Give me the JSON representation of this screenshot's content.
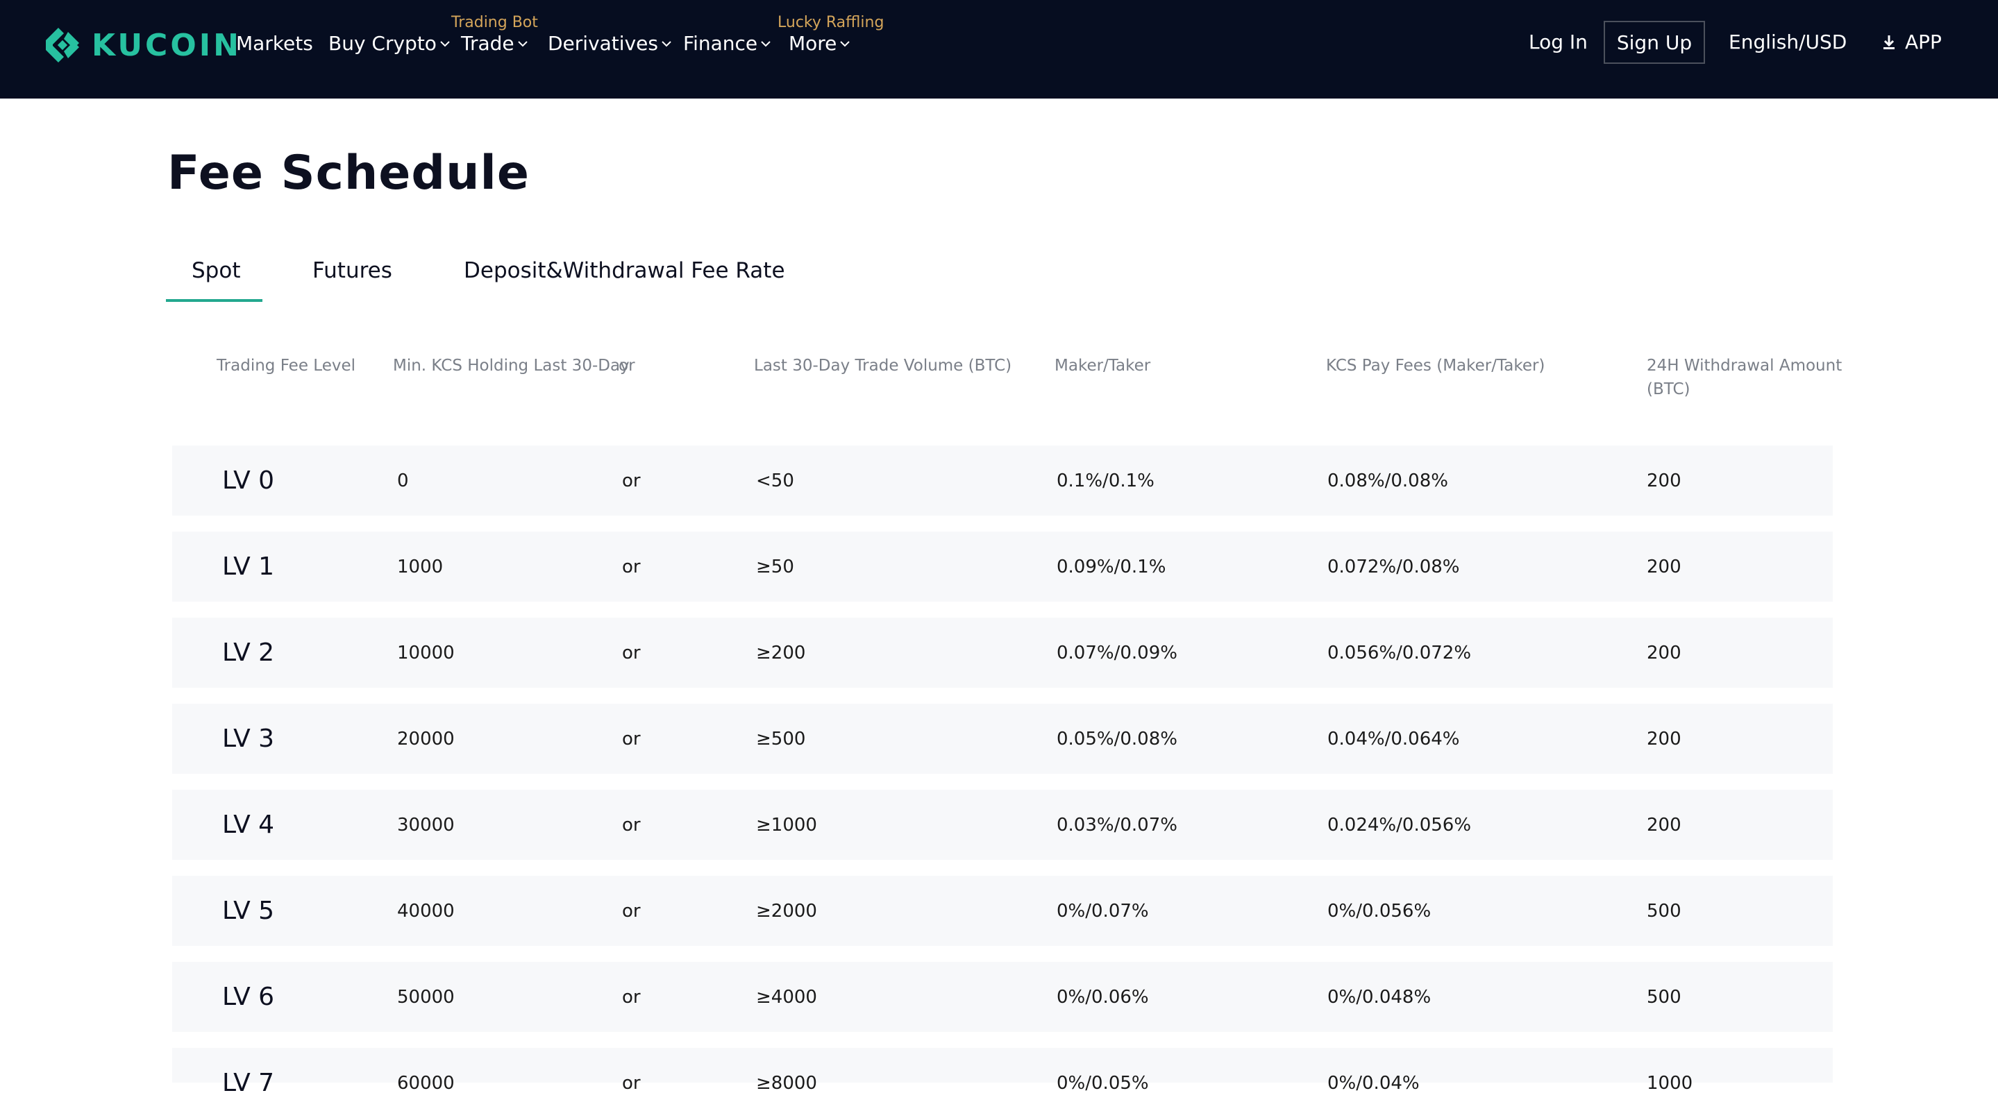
{
  "brand": {
    "name": "KUCOIN",
    "color": "#27c1a0"
  },
  "nav": {
    "items": [
      {
        "label": "Markets",
        "dropdown": false,
        "tag": ""
      },
      {
        "label": "Buy Crypto",
        "dropdown": true,
        "tag": ""
      },
      {
        "label": "Trade",
        "dropdown": true,
        "tag": "Trading Bot"
      },
      {
        "label": "Derivatives",
        "dropdown": true,
        "tag": ""
      },
      {
        "label": "Finance",
        "dropdown": true,
        "tag": ""
      },
      {
        "label": "More",
        "dropdown": true,
        "tag": "Lucky Raffling"
      }
    ],
    "login": "Log In",
    "signup": "Sign Up",
    "language": "English/USD",
    "app": "APP"
  },
  "page": {
    "title": "Fee Schedule",
    "tabs": [
      {
        "label": "Spot",
        "active": true
      },
      {
        "label": "Futures",
        "active": false
      },
      {
        "label": "Deposit&Withdrawal Fee Rate",
        "active": false
      }
    ]
  },
  "table": {
    "headers": {
      "level": "Trading Fee Level",
      "kcs": "Min. KCS Holding Last 30-Day",
      "or": "or",
      "volume": "Last 30-Day Trade Volume (BTC)",
      "maker_taker": "Maker/Taker",
      "kcs_pay": "KCS Pay Fees (Maker/Taker)",
      "withdrawal_line1": "24H Withdrawal Amount",
      "withdrawal_line2": "(BTC)"
    },
    "rows": [
      {
        "level": "LV 0",
        "kcs": "0",
        "or": "or",
        "volume": "<50",
        "maker_taker": "0.1%/0.1%",
        "kcs_pay": "0.08%/0.08%",
        "withdrawal": "200"
      },
      {
        "level": "LV 1",
        "kcs": "1000",
        "or": "or",
        "volume": "≥50",
        "maker_taker": "0.09%/0.1%",
        "kcs_pay": "0.072%/0.08%",
        "withdrawal": "200"
      },
      {
        "level": "LV 2",
        "kcs": "10000",
        "or": "or",
        "volume": "≥200",
        "maker_taker": "0.07%/0.09%",
        "kcs_pay": "0.056%/0.072%",
        "withdrawal": "200"
      },
      {
        "level": "LV 3",
        "kcs": "20000",
        "or": "or",
        "volume": "≥500",
        "maker_taker": "0.05%/0.08%",
        "kcs_pay": "0.04%/0.064%",
        "withdrawal": "200"
      },
      {
        "level": "LV 4",
        "kcs": "30000",
        "or": "or",
        "volume": "≥1000",
        "maker_taker": "0.03%/0.07%",
        "kcs_pay": "0.024%/0.056%",
        "withdrawal": "200"
      },
      {
        "level": "LV 5",
        "kcs": "40000",
        "or": "or",
        "volume": "≥2000",
        "maker_taker": "0%/0.07%",
        "kcs_pay": "0%/0.056%",
        "withdrawal": "500"
      },
      {
        "level": "LV 6",
        "kcs": "50000",
        "or": "or",
        "volume": "≥4000",
        "maker_taker": "0%/0.06%",
        "kcs_pay": "0%/0.048%",
        "withdrawal": "500"
      },
      {
        "level": "LV 7",
        "kcs": "60000",
        "or": "or",
        "volume": "≥8000",
        "maker_taker": "0%/0.05%",
        "kcs_pay": "0%/0.04%",
        "withdrawal": "1000"
      }
    ]
  }
}
